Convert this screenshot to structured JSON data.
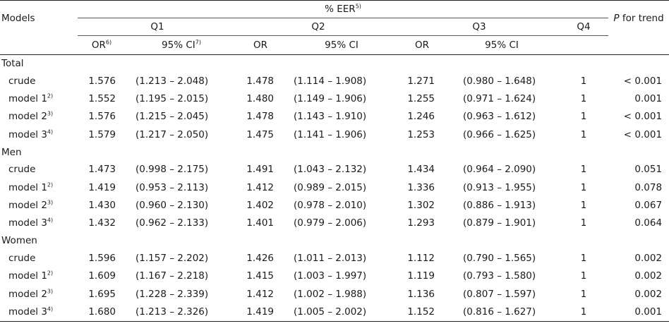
{
  "header": {
    "models": "Models",
    "eer": "% EER",
    "eer_sup": "5)",
    "q1": "Q1",
    "q2": "Q2",
    "q3": "Q3",
    "q4": "Q4",
    "p_italic": "P",
    "p_rest": " for trend",
    "or": "OR",
    "or_sup": "6)",
    "ci": "95% CI",
    "ci_sup": "7)"
  },
  "groups": [
    {
      "label": "Total",
      "rows": [
        {
          "model": "crude",
          "sup": "",
          "q1_or": "1.576",
          "q1_ci": "(1.213 – 2.048)",
          "q2_or": "1.478",
          "q2_ci": "(1.114 – 1.908)",
          "q3_or": "1.271",
          "q3_ci": "(0.980 – 1.648)",
          "q4": "1",
          "p": "< 0.001"
        },
        {
          "model": "model 1",
          "sup": "2)",
          "q1_or": "1.552",
          "q1_ci": "(1.195 – 2.015)",
          "q2_or": "1.480",
          "q2_ci": "(1.149 – 1.906)",
          "q3_or": "1.255",
          "q3_ci": "(0.971 – 1.624)",
          "q4": "1",
          "p": "0.001"
        },
        {
          "model": "model 2",
          "sup": "3)",
          "q1_or": "1.576",
          "q1_ci": "(1.215 – 2.045)",
          "q2_or": "1.478",
          "q2_ci": "(1.143 – 1.910)",
          "q3_or": "1.246",
          "q3_ci": "(0.963 – 1.612)",
          "q4": "1",
          "p": "< 0.001"
        },
        {
          "model": "model 3",
          "sup": "4)",
          "q1_or": "1.579",
          "q1_ci": "(1.217 – 2.050)",
          "q2_or": "1.475",
          "q2_ci": "(1.141 – 1.906)",
          "q3_or": "1.253",
          "q3_ci": "(0.966 – 1.625)",
          "q4": "1",
          "p": "< 0.001"
        }
      ]
    },
    {
      "label": "Men",
      "rows": [
        {
          "model": "crude",
          "sup": "",
          "q1_or": "1.473",
          "q1_ci": "(0.998 – 2.175)",
          "q2_or": "1.491",
          "q2_ci": "(1.043 – 2.132)",
          "q3_or": "1.434",
          "q3_ci": "(0.964 – 2.090)",
          "q4": "1",
          "p": "0.051"
        },
        {
          "model": "model 1",
          "sup": "2)",
          "q1_or": "1.419",
          "q1_ci": "(0.953 – 2.113)",
          "q2_or": "1.412",
          "q2_ci": "(0.989 – 2.015)",
          "q3_or": "1.336",
          "q3_ci": "(0.913 – 1.955)",
          "q4": "1",
          "p": "0.078"
        },
        {
          "model": "model 2",
          "sup": "3)",
          "q1_or": "1.430",
          "q1_ci": "(0.960 – 2.130)",
          "q2_or": "1.402",
          "q2_ci": "(0.978 – 2.010)",
          "q3_or": "1.302",
          "q3_ci": "(0.886 – 1.913)",
          "q4": "1",
          "p": "0.067"
        },
        {
          "model": "model 3",
          "sup": "4)",
          "q1_or": "1.432",
          "q1_ci": "(0.962 – 2.133)",
          "q2_or": "1.401",
          "q2_ci": "(0.979 – 2.006)",
          "q3_or": "1.293",
          "q3_ci": "(0.879 – 1.901)",
          "q4": "1",
          "p": "0.064"
        }
      ]
    },
    {
      "label": "Women",
      "rows": [
        {
          "model": "crude",
          "sup": "",
          "q1_or": "1.596",
          "q1_ci": "(1.157 – 2.202)",
          "q2_or": "1.426",
          "q2_ci": "(1.011 – 2.013)",
          "q3_or": "1.112",
          "q3_ci": "(0.790 – 1.565)",
          "q4": "1",
          "p": "0.002"
        },
        {
          "model": "model 1",
          "sup": "2)",
          "q1_or": "1.609",
          "q1_ci": "(1.167 – 2.218)",
          "q2_or": "1.415",
          "q2_ci": "(1.003 – 1.997)",
          "q3_or": "1.119",
          "q3_ci": "(0.793 – 1.580)",
          "q4": "1",
          "p": "0.002"
        },
        {
          "model": "model 2",
          "sup": "3)",
          "q1_or": "1.695",
          "q1_ci": "(1.228 – 2.339)",
          "q2_or": "1.412",
          "q2_ci": "(1.002 – 1.988)",
          "q3_or": "1.136",
          "q3_ci": "(0.807 – 1.597)",
          "q4": "1",
          "p": "0.002"
        },
        {
          "model": "model 3",
          "sup": "4)",
          "q1_or": "1.680",
          "q1_ci": "(1.213 – 2.326)",
          "q2_or": "1.419",
          "q2_ci": "(1.005 – 2.002)",
          "q3_or": "1.152",
          "q3_ci": "(0.816 – 1.627)",
          "q4": "1",
          "p": "0.001"
        }
      ]
    }
  ]
}
